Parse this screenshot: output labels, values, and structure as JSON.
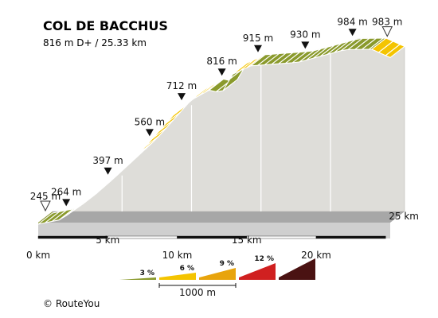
{
  "chart_data": {
    "type": "area",
    "title": "COL DE BACCHUS",
    "subtitle": "816 m D+ / 25.33 km",
    "x_unit": "km",
    "y_unit": "m",
    "x_ticks": [
      "0 km",
      "5 km",
      "10 km",
      "15 km",
      "20 km",
      "25 km"
    ],
    "waypoints": [
      {
        "km": 0.0,
        "elevation_m": 245,
        "label": "245 m",
        "marker": "start"
      },
      {
        "km": 1.5,
        "elevation_m": 264,
        "label": "264 m",
        "marker": "point"
      },
      {
        "km": 4.5,
        "elevation_m": 397,
        "label": "397 m",
        "marker": "point"
      },
      {
        "km": 7.5,
        "elevation_m": 560,
        "label": "560 m",
        "marker": "point"
      },
      {
        "km": 9.8,
        "elevation_m": 712,
        "label": "712 m",
        "marker": "point"
      },
      {
        "km": 12.7,
        "elevation_m": 816,
        "label": "816 m",
        "marker": "point"
      },
      {
        "km": 15.3,
        "elevation_m": 915,
        "label": "915 m",
        "marker": "point"
      },
      {
        "km": 18.7,
        "elevation_m": 930,
        "label": "930 m",
        "marker": "point"
      },
      {
        "km": 22.1,
        "elevation_m": 984,
        "label": "984 m",
        "marker": "point"
      },
      {
        "km": 24.6,
        "elevation_m": 983,
        "label": "983 m",
        "marker": "end"
      }
    ],
    "profile": [
      {
        "km": 0.0,
        "elevation_m": 245
      },
      {
        "km": 1.6,
        "elevation_m": 264
      },
      {
        "km": 3.2,
        "elevation_m": 330
      },
      {
        "km": 4.5,
        "elevation_m": 397
      },
      {
        "km": 7.5,
        "elevation_m": 560
      },
      {
        "km": 9.8,
        "elevation_m": 712
      },
      {
        "km": 11.0,
        "elevation_m": 770
      },
      {
        "km": 12.3,
        "elevation_m": 812
      },
      {
        "km": 13.2,
        "elevation_m": 800
      },
      {
        "km": 14.0,
        "elevation_m": 880
      },
      {
        "km": 15.3,
        "elevation_m": 915
      },
      {
        "km": 18.7,
        "elevation_m": 930
      },
      {
        "km": 22.1,
        "elevation_m": 984
      },
      {
        "km": 24.0,
        "elevation_m": 985
      },
      {
        "km": 25.33,
        "elevation_m": 950
      }
    ],
    "gradient_segments": [
      {
        "from_km": 0.0,
        "to_km": 3.2,
        "grade_class": 3
      },
      {
        "from_km": 3.2,
        "to_km": 9.8,
        "grade_class": 6
      },
      {
        "from_km": 9.8,
        "to_km": 11.0,
        "grade_class": 9
      },
      {
        "from_km": 11.0,
        "to_km": 12.3,
        "grade_class": 6
      },
      {
        "from_km": 12.3,
        "to_km": 14.0,
        "grade_class": 3
      },
      {
        "from_km": 14.0,
        "to_km": 15.3,
        "grade_class": 6
      },
      {
        "from_km": 15.3,
        "to_km": 24.0,
        "grade_class": 3
      },
      {
        "from_km": 24.0,
        "to_km": 25.33,
        "grade_class": 6
      }
    ],
    "legend": {
      "items": [
        {
          "label": "3 %",
          "color": "#8a9a2c"
        },
        {
          "label": "6 %",
          "color": "#f4c400"
        },
        {
          "label": "9 %",
          "color": "#e8a40c"
        },
        {
          "label": "12 %",
          "color": "#d02020"
        },
        {
          "label": "",
          "color": "#4a1212"
        }
      ],
      "scale_label": "1000 m"
    },
    "colors": {
      "grade_3": "#8a9a2c",
      "grade_6": "#f4c400",
      "grade_9": "#e8a40c",
      "side_face": "#deddd9",
      "base_top": "#a7a7a7",
      "base_front": "#cfcfcf"
    }
  },
  "footer": {
    "copyright_symbol": "©",
    "brand": "RouteYou"
  }
}
